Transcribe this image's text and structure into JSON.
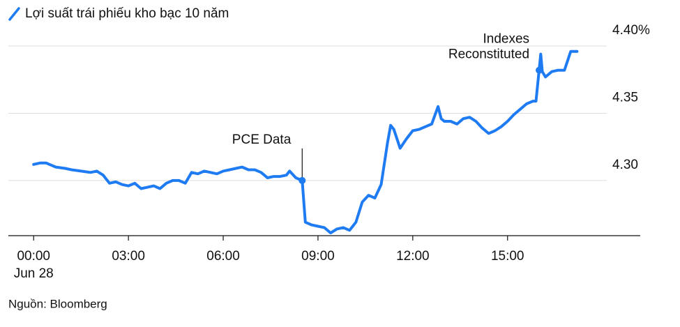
{
  "chart_data": {
    "type": "line",
    "title": "Lợi suất trái phiếu kho bạc 10 năm",
    "source": "Nguồn: Bloomberg",
    "color": "#1f7bf2",
    "x_date_label": "Jun 28",
    "xlim": [
      -0.8,
      19.2
    ],
    "xticks": [
      {
        "value": 0,
        "label": "00:00"
      },
      {
        "value": 3,
        "label": "03:00"
      },
      {
        "value": 6,
        "label": "06:00"
      },
      {
        "value": 9,
        "label": "09:00"
      },
      {
        "value": 12,
        "label": "12:00"
      },
      {
        "value": 15,
        "label": "15:00"
      }
    ],
    "ylim": [
      4.259,
      4.4
    ],
    "yticks": [
      {
        "value": 4.3,
        "label": "4.30"
      },
      4.35,
      {
        "value": 4.4,
        "label": "4.40%"
      }
    ],
    "grid": true,
    "x": [
      0,
      0.2,
      0.4,
      0.5,
      0.7,
      1.0,
      1.2,
      1.5,
      1.8,
      2.0,
      2.2,
      2.4,
      2.6,
      2.8,
      3.0,
      3.2,
      3.4,
      3.6,
      3.8,
      4.0,
      4.2,
      4.4,
      4.6,
      4.8,
      5.0,
      5.2,
      5.4,
      5.6,
      5.8,
      6.0,
      6.2,
      6.4,
      6.6,
      6.8,
      7.0,
      7.2,
      7.4,
      7.6,
      7.8,
      8.0,
      8.1,
      8.3,
      8.4,
      8.5,
      8.6,
      8.8,
      9.0,
      9.2,
      9.4,
      9.6,
      9.8,
      10.0,
      10.2,
      10.4,
      10.6,
      10.8,
      11.0,
      11.2,
      11.3,
      11.4,
      11.6,
      11.8,
      12.0,
      12.2,
      12.4,
      12.6,
      12.8,
      12.9,
      13.0,
      13.2,
      13.4,
      13.6,
      13.8,
      14.0,
      14.2,
      14.4,
      14.6,
      14.8,
      15.0,
      15.2,
      15.4,
      15.6,
      15.8,
      15.9,
      16.0,
      16.05,
      16.1,
      16.2,
      16.4,
      16.6,
      16.8,
      17.0,
      17.2
    ],
    "values": [
      4.312,
      4.313,
      4.313,
      4.312,
      4.31,
      4.309,
      4.308,
      4.307,
      4.306,
      4.307,
      4.304,
      4.298,
      4.299,
      4.297,
      4.296,
      4.298,
      4.294,
      4.295,
      4.296,
      4.294,
      4.298,
      4.3,
      4.3,
      4.298,
      4.306,
      4.305,
      4.307,
      4.306,
      4.305,
      4.307,
      4.308,
      4.309,
      4.31,
      4.308,
      4.308,
      4.306,
      4.302,
      4.303,
      4.303,
      4.304,
      4.307,
      4.302,
      4.301,
      4.3,
      4.269,
      4.267,
      4.266,
      4.265,
      4.261,
      4.264,
      4.265,
      4.263,
      4.269,
      4.284,
      4.289,
      4.287,
      4.297,
      4.328,
      4.341,
      4.338,
      4.324,
      4.331,
      4.337,
      4.338,
      4.34,
      4.342,
      4.355,
      4.346,
      4.344,
      4.344,
      4.342,
      4.346,
      4.347,
      4.344,
      4.339,
      4.335,
      4.337,
      4.34,
      4.344,
      4.349,
      4.353,
      4.357,
      4.359,
      4.359,
      4.382,
      4.394,
      4.381,
      4.377,
      4.381,
      4.382,
      4.382,
      4.396,
      4.396
    ],
    "annotations": [
      {
        "lines": [
          "PCE Data"
        ],
        "x": 8.5,
        "y": 4.3
      },
      {
        "lines": [
          "Indexes",
          "Reconstituted"
        ],
        "x": 16.0,
        "y": 4.382
      }
    ]
  }
}
